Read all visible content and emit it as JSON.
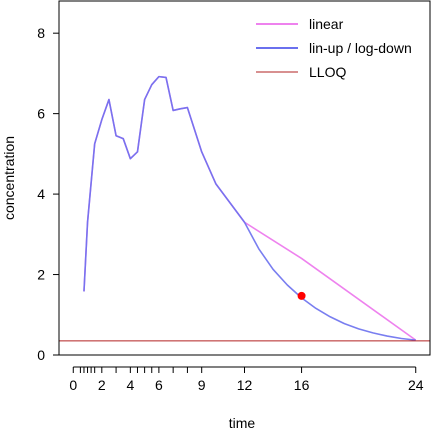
{
  "chart_data": {
    "type": "line",
    "xlabel": "time",
    "ylabel": "concentration",
    "xlim": [
      -1,
      25
    ],
    "ylim": [
      0,
      8.8
    ],
    "x_ticks": [
      0,
      2,
      4,
      6,
      9,
      12,
      16,
      24
    ],
    "x_minor_ticks": [
      0.5,
      0.75,
      1,
      1.25,
      1.5,
      3,
      4.5,
      5,
      5.5,
      7,
      8
    ],
    "y_ticks": [
      0,
      2,
      4,
      6,
      8
    ],
    "grid": false,
    "legend_position": "top-right",
    "series": [
      {
        "name": "linear",
        "color": "#ee82ee",
        "x": [
          0.75,
          1,
          1.5,
          2,
          2.5,
          3,
          3.5,
          4,
          4.5,
          5,
          5.5,
          6,
          6.5,
          7,
          7.5,
          8,
          9,
          10,
          12,
          16,
          24
        ],
        "y": [
          1.58,
          3.3,
          5.25,
          5.85,
          6.35,
          5.45,
          5.38,
          4.88,
          5.05,
          6.35,
          6.72,
          6.92,
          6.9,
          6.08,
          6.12,
          6.15,
          5.05,
          4.25,
          3.3,
          2.4,
          0.37
        ]
      },
      {
        "name": "lin-up / log-down",
        "color": "#6a70ee",
        "x": [
          0.75,
          1,
          1.5,
          2,
          2.5,
          3,
          3.5,
          4,
          4.5,
          5,
          5.5,
          6,
          6.5,
          7,
          7.5,
          8,
          9,
          10,
          12,
          13,
          14,
          15,
          16,
          17,
          18,
          19,
          20,
          21,
          22,
          23,
          24
        ],
        "y": [
          1.58,
          3.3,
          5.25,
          5.85,
          6.35,
          5.45,
          5.38,
          4.88,
          5.05,
          6.35,
          6.72,
          6.92,
          6.9,
          6.08,
          6.12,
          6.15,
          5.05,
          4.25,
          3.3,
          2.64,
          2.13,
          1.74,
          1.42,
          1.16,
          0.95,
          0.78,
          0.65,
          0.55,
          0.47,
          0.41,
          0.37
        ]
      },
      {
        "name": "LLOQ",
        "color": "#b22222",
        "type": "hline",
        "y": 0.35
      }
    ],
    "points": [
      {
        "x": 16,
        "y": 1.47,
        "color": "#ff0000"
      }
    ]
  }
}
